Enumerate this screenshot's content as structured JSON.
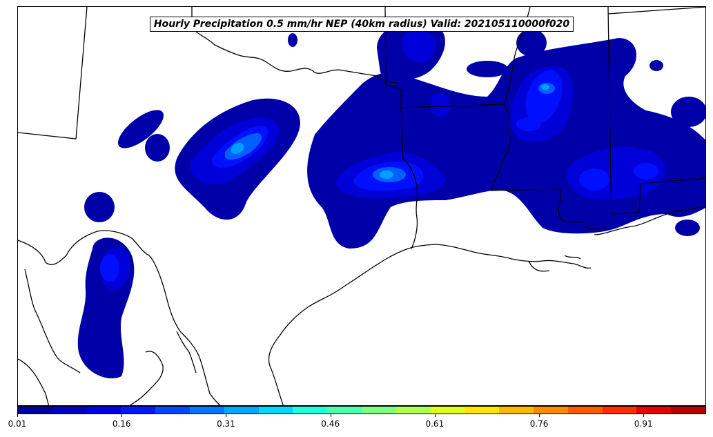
{
  "map": {
    "title": "Hourly Precipitation 0.5 mm/hr NEP (40km radius) Valid: 202105110000f020",
    "colorbar": {
      "colors": [
        "#00009f",
        "#0000c6",
        "#0000ee",
        "#0018ff",
        "#0048ff",
        "#0078ff",
        "#00a8ff",
        "#00d8ff",
        "#1effde",
        "#4effae",
        "#7eff7e",
        "#aeff4e",
        "#deff1e",
        "#ffe600",
        "#ffb800",
        "#ff8a00",
        "#ff5c00",
        "#ff2e00",
        "#e80000",
        "#b80000"
      ],
      "min": 0.01,
      "max": 1.0,
      "tick_labels": [
        "0.01",
        "0.16",
        "0.31",
        "0.46",
        "0.61",
        "0.76",
        "0.91"
      ],
      "tick_values": [
        0.01,
        0.16,
        0.31,
        0.46,
        0.61,
        0.76,
        0.91
      ]
    },
    "layers": {
      "precip_colors": {
        "low": "#0000a8",
        "mid": "#0000d8",
        "high": "#0010ff",
        "peak": "#0060ff",
        "max": "#00a0ff"
      },
      "boundary_color": "#000000",
      "land_color": "#ffffff"
    }
  }
}
